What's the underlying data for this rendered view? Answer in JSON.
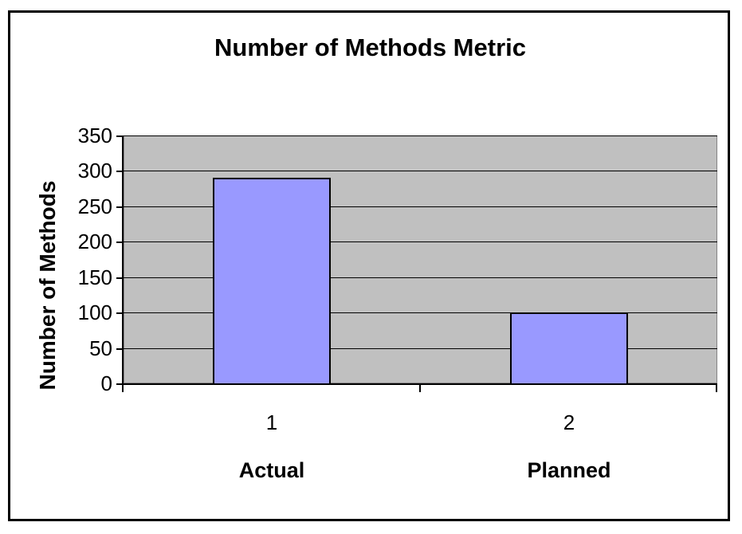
{
  "chart_data": {
    "type": "bar",
    "title": "Number of Methods Metric",
    "xlabel": "",
    "ylabel": "Number of Methods",
    "categories": [
      "1",
      "2"
    ],
    "category_labels": [
      "Actual",
      "Planned"
    ],
    "values": [
      290,
      100
    ],
    "ylim": [
      0,
      350
    ],
    "ytick_step": 50,
    "ytick_labels": [
      "350",
      "300",
      "250",
      "200",
      "150",
      "100",
      "50",
      "0"
    ],
    "grid": true,
    "legend": false,
    "colors": {
      "bar_fill": "#9999ff",
      "bar_border": "#000000",
      "plot_bg": "#c0c0c0",
      "plot_border": "#848284",
      "grid_line": "#000000",
      "axis_line": "#000000",
      "chart_bg": "#ffffff",
      "frame_border": "#000000",
      "text": "#000000"
    }
  }
}
